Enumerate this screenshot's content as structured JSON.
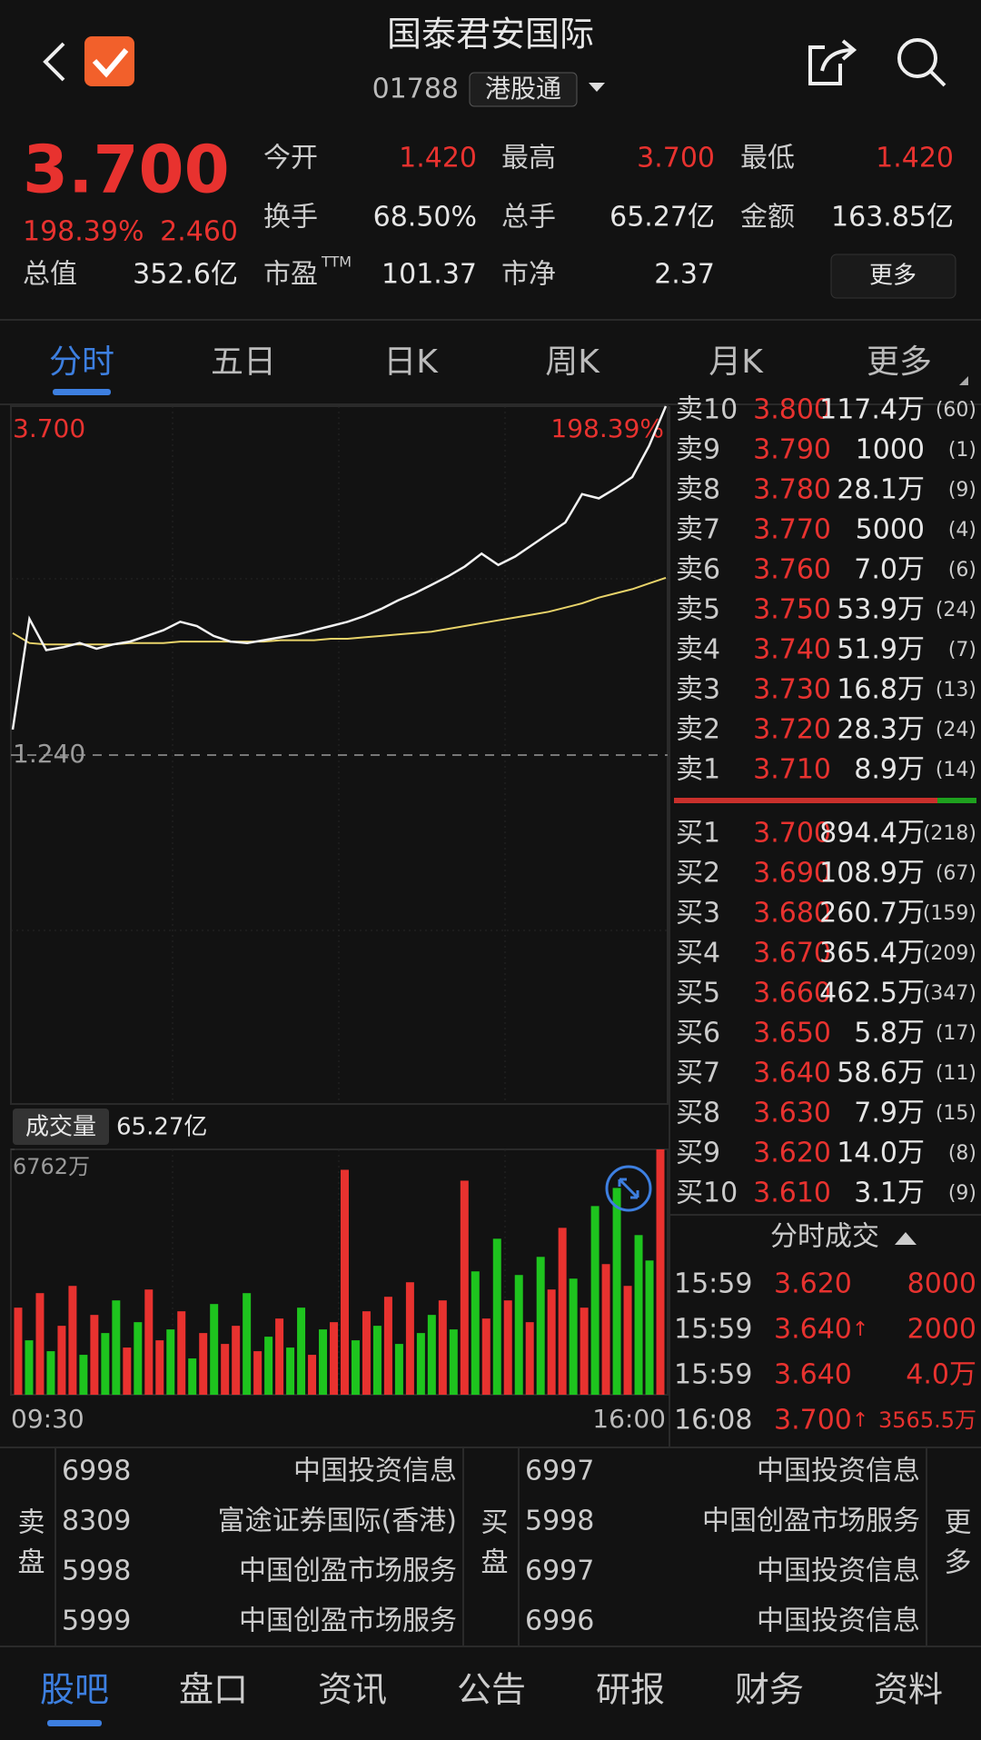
{
  "header": {
    "title": "国泰君安国际",
    "code": "01788",
    "badge": "港股通"
  },
  "quote": {
    "price": "3.700",
    "change_pct": "198.39%",
    "change": "2.460",
    "cap_label": "总值",
    "cap": "352.6亿",
    "stats": [
      {
        "label": "今开",
        "value": "1.420",
        "color": "#e8322f"
      },
      {
        "label": "最高",
        "value": "3.700",
        "color": "#e8322f"
      },
      {
        "label": "最低",
        "value": "1.420",
        "color": "#e8322f"
      },
      {
        "label": "换手",
        "value": "68.50%"
      },
      {
        "label": "总手",
        "value": "65.27亿"
      },
      {
        "label": "金额",
        "value": "163.85亿"
      },
      {
        "label": "市盈",
        "sup": "TTM",
        "value": "101.37"
      },
      {
        "label": "市净",
        "value": "2.37"
      }
    ],
    "more": "更多"
  },
  "tabs": [
    "分时",
    "五日",
    "日K",
    "周K",
    "月K",
    "更多"
  ],
  "intraday": {
    "ylim": [
      -1.22,
      3.7
    ],
    "yticks": [
      {
        "value": 3.7,
        "label": "3.700"
      },
      {
        "value": 1.24,
        "label": "1.240"
      }
    ],
    "pct_top": "198.39%",
    "price_color": "#f2f2f2",
    "avg_color": "#e8d36a",
    "price": [
      1.42,
      2.2,
      1.98,
      2.0,
      2.03,
      1.99,
      2.02,
      2.04,
      2.08,
      2.12,
      2.18,
      2.15,
      2.08,
      2.04,
      2.03,
      2.05,
      2.07,
      2.09,
      2.12,
      2.15,
      2.18,
      2.22,
      2.27,
      2.33,
      2.38,
      2.44,
      2.5,
      2.57,
      2.66,
      2.58,
      2.64,
      2.72,
      2.8,
      2.88,
      3.08,
      3.05,
      3.12,
      3.2,
      3.42,
      3.7
    ],
    "avg": [
      2.1,
      2.03,
      2.02,
      2.02,
      2.02,
      2.02,
      2.02,
      2.03,
      2.03,
      2.03,
      2.04,
      2.04,
      2.04,
      2.04,
      2.04,
      2.04,
      2.05,
      2.05,
      2.05,
      2.06,
      2.06,
      2.07,
      2.08,
      2.09,
      2.1,
      2.11,
      2.13,
      2.15,
      2.17,
      2.19,
      2.21,
      2.23,
      2.25,
      2.28,
      2.31,
      2.35,
      2.38,
      2.41,
      2.45,
      2.49
    ]
  },
  "volume": {
    "label": "成交量",
    "total": "65.27亿",
    "ylim": [
      0,
      6762
    ],
    "yticks": [
      {
        "value": 6762,
        "label": "6762万"
      }
    ],
    "time_start": "09:30",
    "time_end": "16:00",
    "values": [
      2400,
      1500,
      2800,
      1200,
      1900,
      3000,
      1100,
      2200,
      1700,
      2600,
      1300,
      2000,
      2900,
      1500,
      1800,
      2300,
      1000,
      1700,
      2500,
      1400,
      1900,
      2800,
      1200,
      1600,
      2100,
      1300,
      2400,
      1100,
      1800,
      2000,
      6200,
      1500,
      2300,
      1900,
      2700,
      1400,
      3100,
      1700,
      2200,
      2600,
      1800,
      5900,
      3400,
      2100,
      4300,
      2600,
      3300,
      2000,
      3800,
      2900,
      4600,
      3200,
      2400,
      5200,
      3600,
      5700,
      3000,
      4400,
      3700,
      6762
    ],
    "colors": [
      "#e8322f",
      "#1ec41e",
      "#e8322f",
      "#1ec41e",
      "#e8322f",
      "#e8322f",
      "#1ec41e",
      "#e8322f",
      "#1ec41e",
      "#1ec41e",
      "#e8322f",
      "#1ec41e",
      "#e8322f",
      "#e8322f",
      "#1ec41e",
      "#e8322f",
      "#1ec41e",
      "#e8322f",
      "#1ec41e",
      "#e8322f",
      "#e8322f",
      "#1ec41e",
      "#e8322f",
      "#1ec41e",
      "#e8322f",
      "#1ec41e",
      "#1ec41e",
      "#e8322f",
      "#1ec41e",
      "#e8322f",
      "#e8322f",
      "#1ec41e",
      "#e8322f",
      "#1ec41e",
      "#e8322f",
      "#1ec41e",
      "#e8322f",
      "#1ec41e",
      "#1ec41e",
      "#e8322f",
      "#1ec41e",
      "#e8322f",
      "#1ec41e",
      "#e8322f",
      "#1ec41e",
      "#e8322f",
      "#1ec41e",
      "#e8322f",
      "#1ec41e",
      "#e8322f",
      "#e8322f",
      "#1ec41e",
      "#e8322f",
      "#1ec41e",
      "#e8322f",
      "#1ec41e",
      "#e8322f",
      "#1ec41e",
      "#1ec41e",
      "#e8322f"
    ]
  },
  "orderbook": {
    "sell": [
      {
        "label": "卖10",
        "price": "3.800",
        "volume": "117.4万",
        "count": "(60)"
      },
      {
        "label": "卖9",
        "price": "3.790",
        "volume": "1000",
        "count": "(1)"
      },
      {
        "label": "卖8",
        "price": "3.780",
        "volume": "28.1万",
        "count": "(9)"
      },
      {
        "label": "卖7",
        "price": "3.770",
        "volume": "5000",
        "count": "(4)"
      },
      {
        "label": "卖6",
        "price": "3.760",
        "volume": "7.0万",
        "count": "(6)"
      },
      {
        "label": "卖5",
        "price": "3.750",
        "volume": "53.9万",
        "count": "(24)"
      },
      {
        "label": "卖4",
        "price": "3.740",
        "volume": "51.9万",
        "count": "(7)"
      },
      {
        "label": "卖3",
        "price": "3.730",
        "volume": "16.8万",
        "count": "(13)"
      },
      {
        "label": "卖2",
        "price": "3.720",
        "volume": "28.3万",
        "count": "(24)"
      },
      {
        "label": "卖1",
        "price": "3.710",
        "volume": "8.9万",
        "count": "(14)"
      }
    ],
    "buy": [
      {
        "label": "买1",
        "price": "3.700",
        "volume": "894.4万",
        "count": "(218)"
      },
      {
        "label": "买2",
        "price": "3.690",
        "volume": "108.9万",
        "count": "(67)"
      },
      {
        "label": "买3",
        "price": "3.680",
        "volume": "260.7万",
        "count": "(159)"
      },
      {
        "label": "买4",
        "price": "3.670",
        "volume": "365.4万",
        "count": "(209)"
      },
      {
        "label": "买5",
        "price": "3.660",
        "volume": "462.5万",
        "count": "(347)"
      },
      {
        "label": "买6",
        "price": "3.650",
        "volume": "5.8万",
        "count": "(17)"
      },
      {
        "label": "买7",
        "price": "3.640",
        "volume": "58.6万",
        "count": "(11)"
      },
      {
        "label": "买8",
        "price": "3.630",
        "volume": "7.9万",
        "count": "(15)"
      },
      {
        "label": "买9",
        "price": "3.620",
        "volume": "14.0万",
        "count": "(8)"
      },
      {
        "label": "买10",
        "price": "3.610",
        "volume": "3.1万",
        "count": "(9)"
      }
    ]
  },
  "trades": {
    "title": "分时成交",
    "rows": [
      {
        "time": "15:59",
        "price": "3.620",
        "volume": "8000"
      },
      {
        "time": "15:59",
        "price": "3.640",
        "dir": "↑",
        "volume": "2000"
      },
      {
        "time": "15:59",
        "price": "3.640",
        "volume": "4.0万"
      },
      {
        "time": "16:08",
        "price": "3.700",
        "dir": "↑",
        "volume": "3565.5万"
      }
    ]
  },
  "brokers": {
    "sell_label": "卖盘",
    "buy_label": "买盘",
    "more": "更多",
    "sell": [
      {
        "code": "6998",
        "name": "中国投资信息"
      },
      {
        "code": "8309",
        "name": "富途证券国际(香港)"
      },
      {
        "code": "5998",
        "name": "中国创盈市场服务"
      },
      {
        "code": "5999",
        "name": "中国创盈市场服务"
      }
    ],
    "buy": [
      {
        "code": "6997",
        "name": "中国投资信息"
      },
      {
        "code": "5998",
        "name": "中国创盈市场服务"
      },
      {
        "code": "6997",
        "name": "中国投资信息"
      },
      {
        "code": "6996",
        "name": "中国投资信息"
      }
    ]
  },
  "nav": [
    "股吧",
    "盘口",
    "资讯",
    "公告",
    "研报",
    "财务",
    "资料"
  ]
}
